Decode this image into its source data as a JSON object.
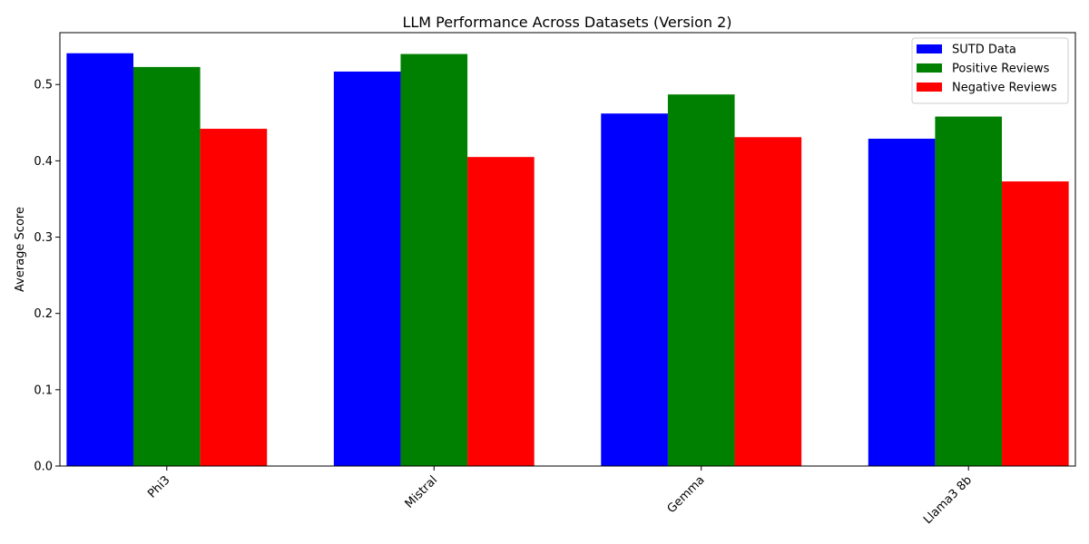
{
  "chart_data": {
    "type": "bar",
    "title": "LLM Performance Across Datasets (Version 2)",
    "xlabel": "",
    "ylabel": "Average Score",
    "categories": [
      "Phi3",
      "Mistral",
      "Gemma",
      "Llama3 8b"
    ],
    "series": [
      {
        "name": "SUTD Data",
        "color": "#0000ff",
        "values": [
          0.541,
          0.517,
          0.462,
          0.429
        ]
      },
      {
        "name": "Positive Reviews",
        "color": "#008000",
        "values": [
          0.523,
          0.54,
          0.487,
          0.458
        ]
      },
      {
        "name": "Negative Reviews",
        "color": "#ff0000",
        "values": [
          0.442,
          0.405,
          0.431,
          0.373
        ]
      }
    ],
    "ylim": [
      0,
      0.568
    ],
    "yticks": [
      "0.0",
      "0.1",
      "0.2",
      "0.3",
      "0.4",
      "0.5"
    ],
    "legend_position": "top-right",
    "grid": false,
    "xtick_rotation": "45"
  }
}
